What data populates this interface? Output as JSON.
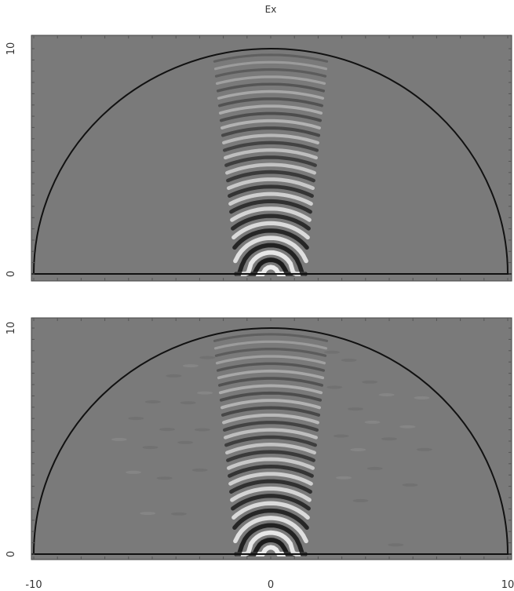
{
  "figure": {
    "title": "Ex"
  },
  "chart_data": [
    {
      "type": "heatmap",
      "title": "Ex",
      "panel": "top",
      "xlim": [
        -10,
        10
      ],
      "ylim": [
        0,
        10
      ],
      "x_ticks": [],
      "y_ticks": [
        0,
        10
      ],
      "boundary": "semicircle radius 10 centered at origin",
      "colormap": "grayscale",
      "background": "#7a7a7a",
      "pattern": {
        "kind": "concentric wavefronts",
        "center_x": 0,
        "half_width": 2.4,
        "wavelength": 0.65,
        "from_y": 0.3,
        "to_y": 10,
        "ripple_noise": false
      }
    },
    {
      "type": "heatmap",
      "panel": "bottom",
      "xlim": [
        -10,
        10
      ],
      "ylim": [
        0,
        10
      ],
      "x_ticks": [
        -10,
        0,
        10
      ],
      "y_ticks": [
        0,
        10
      ],
      "boundary": "semicircle radius 10 centered at origin",
      "colormap": "grayscale",
      "background": "#7a7a7a",
      "pattern": {
        "kind": "concentric wavefronts",
        "center_x": 0,
        "half_width": 2.4,
        "wavelength": 0.65,
        "from_y": 0.3,
        "to_y": 10,
        "ripple_noise": true
      }
    }
  ]
}
